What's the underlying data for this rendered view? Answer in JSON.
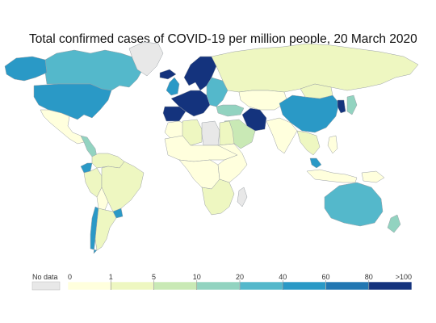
{
  "title": "Total confirmed cases of COVID-19 per million people, 20 March 2020",
  "legend": {
    "no_data_label": "No data",
    "no_data_color": "#e8e8e8",
    "tick_labels": [
      "0",
      "1",
      "5",
      "10",
      "20",
      "40",
      "60",
      "80",
      ">100"
    ],
    "bins": [
      {
        "from": "0",
        "to": "1",
        "color": "#ffffdd"
      },
      {
        "from": "1",
        "to": "5",
        "color": "#eef7c1"
      },
      {
        "from": "5",
        "to": "10",
        "color": "#c9e9b5"
      },
      {
        "from": "10",
        "to": "20",
        "color": "#92d3c0"
      },
      {
        "from": "20",
        "to": "40",
        "color": "#54b8cb"
      },
      {
        "from": "40",
        "to": "60",
        "color": "#2a99c6"
      },
      {
        "from": "60",
        "to": "80",
        "color": "#2277b2"
      },
      {
        "from": "80",
        "to": ">100",
        "color": "#14337d"
      }
    ]
  },
  "map": {
    "ocean_color": "#ffffff",
    "border_color": "#9aa0a6",
    "regions": [
      {
        "name": "Canada",
        "color": "#54b8cb"
      },
      {
        "name": "Alaska",
        "color": "#2a99c6"
      },
      {
        "name": "Greenland",
        "color": "#e8e8e8"
      },
      {
        "name": "United States",
        "color": "#2a99c6"
      },
      {
        "name": "Mexico",
        "color": "#ffffdd"
      },
      {
        "name": "Central America",
        "color": "#92d3c0"
      },
      {
        "name": "Colombia and Venezuela",
        "color": "#eef7c1"
      },
      {
        "name": "Ecuador",
        "color": "#2a99c6"
      },
      {
        "name": "Peru",
        "color": "#eef7c1"
      },
      {
        "name": "Brazil",
        "color": "#eef7c1"
      },
      {
        "name": "Bolivia",
        "color": "#ffffdd"
      },
      {
        "name": "Chile",
        "color": "#2a99c6"
      },
      {
        "name": "Argentina",
        "color": "#eef7c1"
      },
      {
        "name": "Uruguay",
        "color": "#2a99c6"
      },
      {
        "name": "Scandinavia",
        "color": "#14337d"
      },
      {
        "name": "Western Europe",
        "color": "#14337d"
      },
      {
        "name": "Iberia",
        "color": "#14337d"
      },
      {
        "name": "United Kingdom",
        "color": "#2a99c6"
      },
      {
        "name": "Iceland",
        "color": "#14337d"
      },
      {
        "name": "Eastern Europe",
        "color": "#54b8cb"
      },
      {
        "name": "Russia",
        "color": "#eef7c1"
      },
      {
        "name": "Kazakhstan",
        "color": "#ffffdd"
      },
      {
        "name": "Turkey",
        "color": "#92d3c0"
      },
      {
        "name": "Iran",
        "color": "#14337d"
      },
      {
        "name": "Arabian Peninsula",
        "color": "#c9e9b5"
      },
      {
        "name": "India",
        "color": "#ffffdd"
      },
      {
        "name": "China",
        "color": "#2a99c6"
      },
      {
        "name": "Mongolia",
        "color": "#eef7c1"
      },
      {
        "name": "South Korea",
        "color": "#14337d"
      },
      {
        "name": "Japan",
        "color": "#92d3c0"
      },
      {
        "name": "Southeast Asia",
        "color": "#eef7c1"
      },
      {
        "name": "Malaysia",
        "color": "#2a99c6"
      },
      {
        "name": "Indonesia",
        "color": "#ffffdd"
      },
      {
        "name": "Philippines",
        "color": "#ffffdd"
      },
      {
        "name": "Papua New Guinea",
        "color": "#ffffdd"
      },
      {
        "name": "Australia",
        "color": "#54b8cb"
      },
      {
        "name": "New Zealand",
        "color": "#92d3c0"
      },
      {
        "name": "North Africa",
        "color": "#ffffdd"
      },
      {
        "name": "Algeria",
        "color": "#eef7c1"
      },
      {
        "name": "Libya",
        "color": "#e8e8e8"
      },
      {
        "name": "Egypt",
        "color": "#eef7c1"
      },
      {
        "name": "Sahel",
        "color": "#ffffdd"
      },
      {
        "name": "Central Africa",
        "color": "#ffffdd"
      },
      {
        "name": "East Africa",
        "color": "#ffffdd"
      },
      {
        "name": "Southern Africa",
        "color": "#eef7c1"
      },
      {
        "name": "Madagascar",
        "color": "#e8e8e8"
      }
    ]
  }
}
